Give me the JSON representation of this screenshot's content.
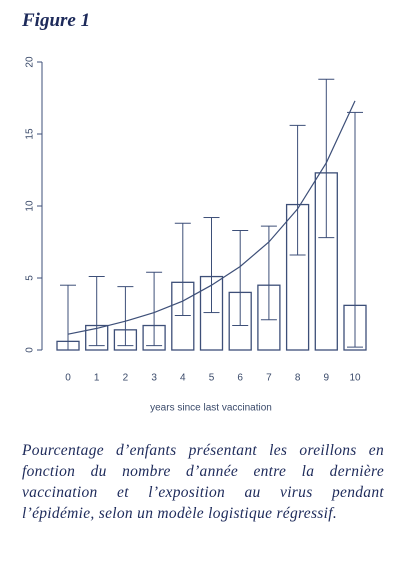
{
  "figure_label": "Figure 1",
  "chart_data": {
    "type": "bar",
    "categories": [
      "0",
      "1",
      "2",
      "3",
      "4",
      "5",
      "6",
      "7",
      "8",
      "9",
      "10"
    ],
    "values": [
      0.6,
      1.7,
      1.4,
      1.7,
      4.7,
      5.1,
      4.0,
      4.5,
      10.1,
      12.3,
      3.1
    ],
    "error_low": [
      0,
      0.3,
      0.3,
      0.3,
      2.4,
      2.6,
      1.7,
      2.1,
      6.6,
      7.8,
      0.2
    ],
    "error_high": [
      4.5,
      5.1,
      4.4,
      5.4,
      8.8,
      9.2,
      8.3,
      8.6,
      15.6,
      18.8,
      16.5
    ],
    "fit": [
      1.1,
      1.5,
      2.0,
      2.6,
      3.4,
      4.5,
      5.8,
      7.5,
      9.8,
      13.0,
      17.3
    ],
    "color": "#3d4f78",
    "x_label": "years since last vaccination",
    "ylim": [
      0,
      20
    ],
    "yticks": [
      0,
      5,
      10,
      15,
      20
    ]
  },
  "caption": "Pourcentage d’enfants présentant les oreillons en fonction du nombre d’année entre la dernière vaccination et l’exposition au virus pendant l’épidémie, selon un modèle logistique régressif."
}
